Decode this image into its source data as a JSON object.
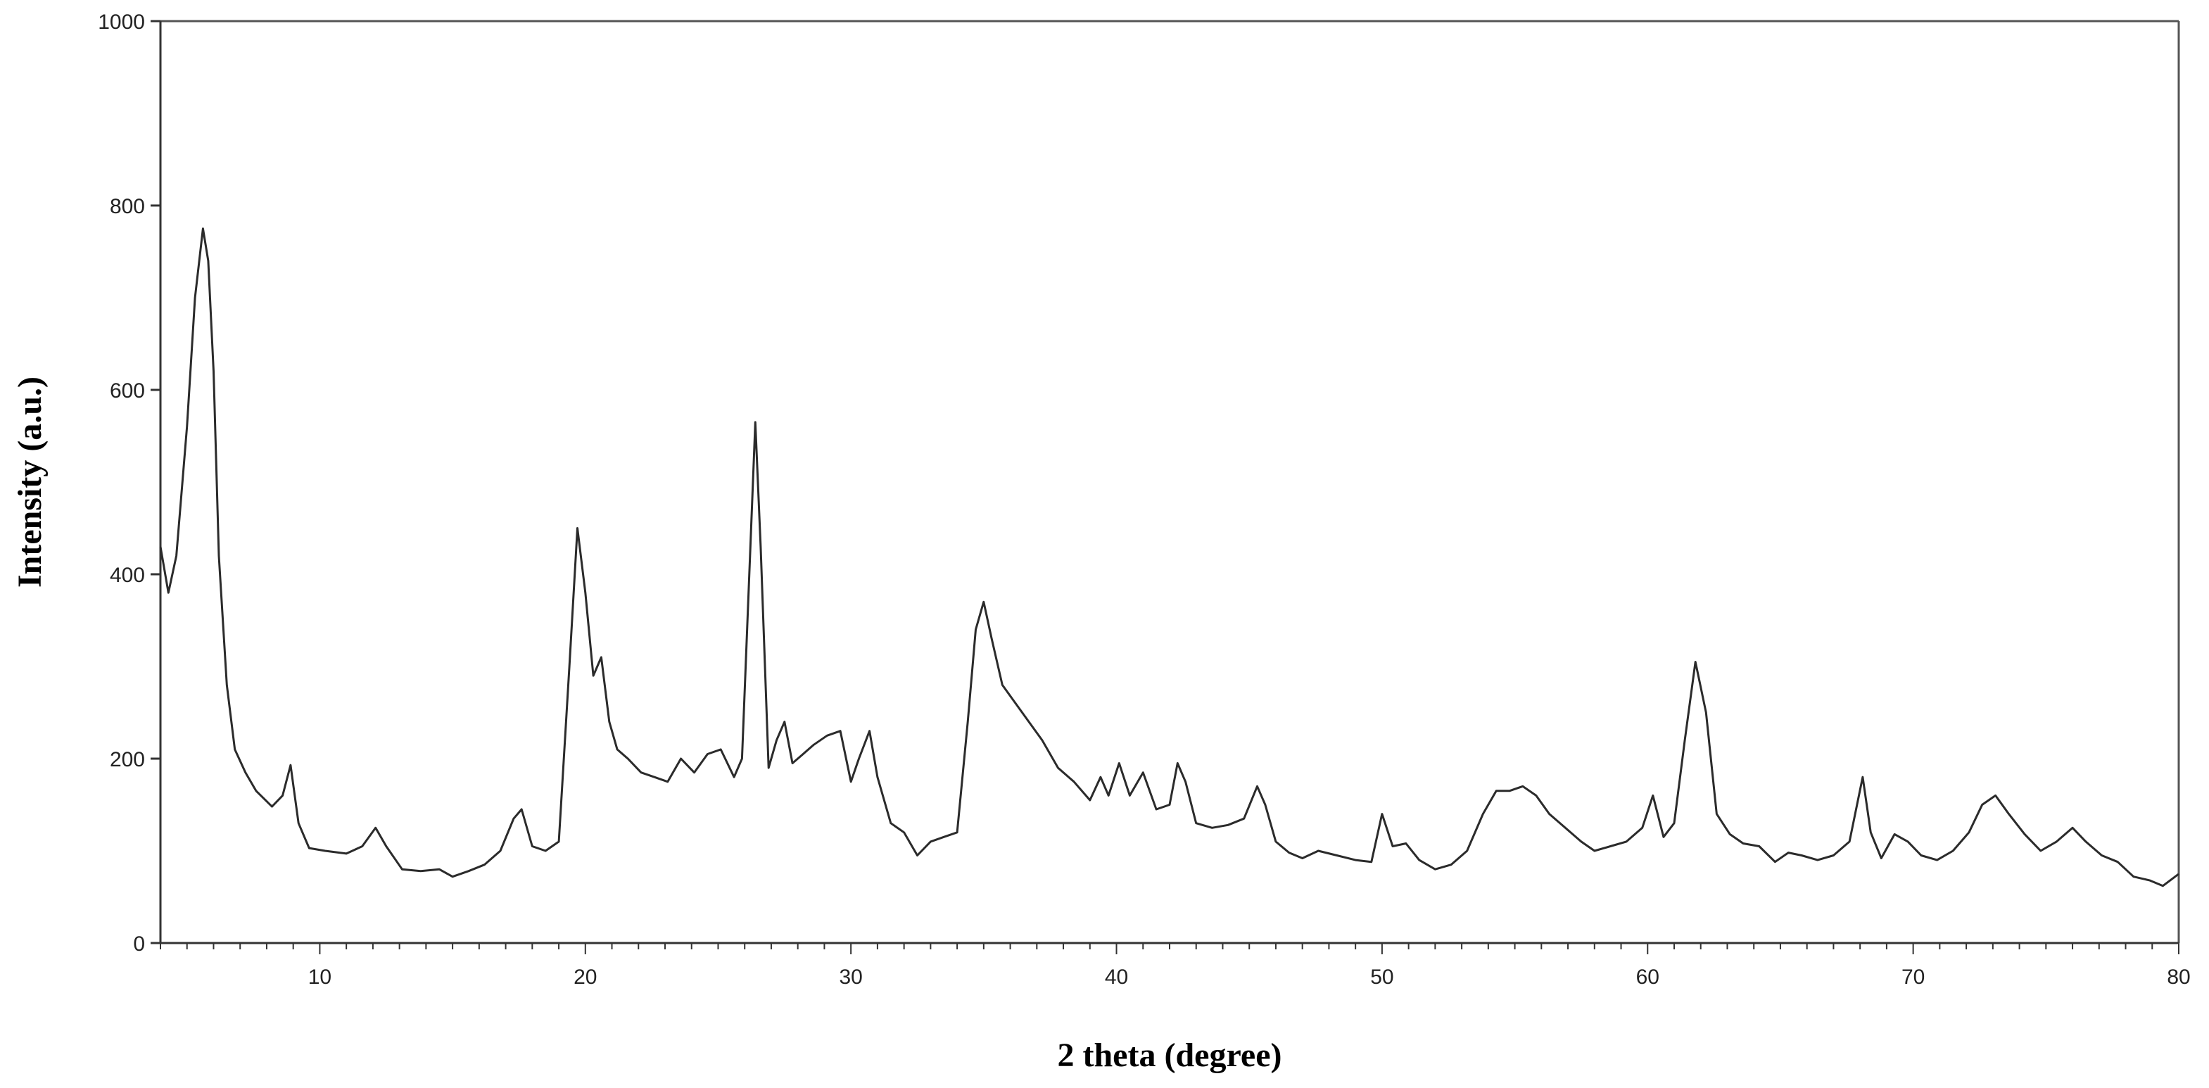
{
  "chart_data": {
    "type": "line",
    "title": "",
    "xlabel": "2 theta (degree)",
    "ylabel": "Intensity (a.u.)",
    "xlim": [
      4,
      80
    ],
    "ylim": [
      0,
      1000
    ],
    "xticks": [
      10,
      20,
      30,
      40,
      50,
      60,
      70,
      80
    ],
    "xtick_labels": [
      "10",
      "20",
      "30",
      "40",
      "50",
      "60",
      "70",
      "80"
    ],
    "yticks": [
      0,
      200,
      400,
      600,
      800,
      1000
    ],
    "ytick_labels": [
      "0",
      "200",
      "400",
      "600",
      "800",
      "1000"
    ],
    "grid": false,
    "legend": "none",
    "line_color": "#2b2b2b",
    "series": [
      {
        "x": [
          4.0,
          4.3,
          4.6,
          5.0,
          5.3,
          5.6,
          5.8,
          6.0,
          6.2,
          6.5,
          6.8,
          7.2,
          7.6,
          8.2,
          8.6,
          8.9,
          9.2,
          9.6,
          10.2,
          11.0,
          11.6,
          12.1,
          12.5,
          13.1,
          13.8,
          14.5,
          15.0,
          15.6,
          16.2,
          16.8,
          17.3,
          17.6,
          18.0,
          18.5,
          19.0,
          19.4,
          19.7,
          20.0,
          20.3,
          20.6,
          20.9,
          21.2,
          21.6,
          22.1,
          22.6,
          23.1,
          23.6,
          24.1,
          24.6,
          25.1,
          25.6,
          25.9,
          26.2,
          26.4,
          26.6,
          26.9,
          27.2,
          27.5,
          27.8,
          28.2,
          28.6,
          29.1,
          29.6,
          30.0,
          30.3,
          30.7,
          31.0,
          31.5,
          32.0,
          32.5,
          33.0,
          33.5,
          34.0,
          34.4,
          34.7,
          35.0,
          35.3,
          35.7,
          36.2,
          36.7,
          37.2,
          37.8,
          38.4,
          39.0,
          39.4,
          39.7,
          40.1,
          40.5,
          41.0,
          41.5,
          42.0,
          42.3,
          42.6,
          43.0,
          43.6,
          44.2,
          44.8,
          45.3,
          45.6,
          46.0,
          46.5,
          47.0,
          47.6,
          48.3,
          49.0,
          49.6,
          50.0,
          50.4,
          50.9,
          51.4,
          52.0,
          52.6,
          53.2,
          53.8,
          54.3,
          54.8,
          55.3,
          55.8,
          56.3,
          56.9,
          57.5,
          58.0,
          58.6,
          59.2,
          59.8,
          60.2,
          60.6,
          61.0,
          61.4,
          61.8,
          62.2,
          62.6,
          63.1,
          63.6,
          64.2,
          64.8,
          65.3,
          65.8,
          66.4,
          67.0,
          67.6,
          68.1,
          68.4,
          68.8,
          69.3,
          69.8,
          70.3,
          70.9,
          71.5,
          72.1,
          72.6,
          73.1,
          73.6,
          74.2,
          74.8,
          75.4,
          76.0,
          76.5,
          77.1,
          77.7,
          78.3,
          78.9,
          79.4,
          80.0
        ],
        "y": [
          430,
          380,
          420,
          560,
          700,
          775,
          740,
          620,
          420,
          280,
          210,
          185,
          165,
          148,
          160,
          193,
          130,
          103,
          100,
          97,
          105,
          125,
          105,
          80,
          78,
          80,
          72,
          78,
          85,
          100,
          135,
          145,
          105,
          100,
          110,
          300,
          450,
          380,
          290,
          310,
          240,
          210,
          200,
          185,
          180,
          175,
          200,
          185,
          205,
          210,
          180,
          200,
          420,
          565,
          430,
          190,
          220,
          240,
          195,
          205,
          215,
          225,
          230,
          175,
          200,
          230,
          180,
          130,
          120,
          95,
          110,
          115,
          120,
          240,
          340,
          370,
          330,
          280,
          260,
          240,
          220,
          190,
          175,
          155,
          180,
          160,
          195,
          160,
          185,
          145,
          150,
          195,
          175,
          130,
          125,
          128,
          135,
          170,
          150,
          110,
          98,
          92,
          100,
          95,
          90,
          88,
          140,
          105,
          108,
          90,
          80,
          85,
          100,
          140,
          165,
          165,
          170,
          160,
          140,
          125,
          110,
          100,
          105,
          110,
          125,
          160,
          115,
          130,
          220,
          305,
          250,
          140,
          118,
          108,
          105,
          88,
          98,
          95,
          90,
          95,
          110,
          180,
          120,
          92,
          118,
          110,
          95,
          90,
          100,
          120,
          150,
          160,
          140,
          118,
          100,
          110,
          125,
          110,
          95,
          88,
          72,
          68,
          62,
          75
        ]
      }
    ]
  }
}
